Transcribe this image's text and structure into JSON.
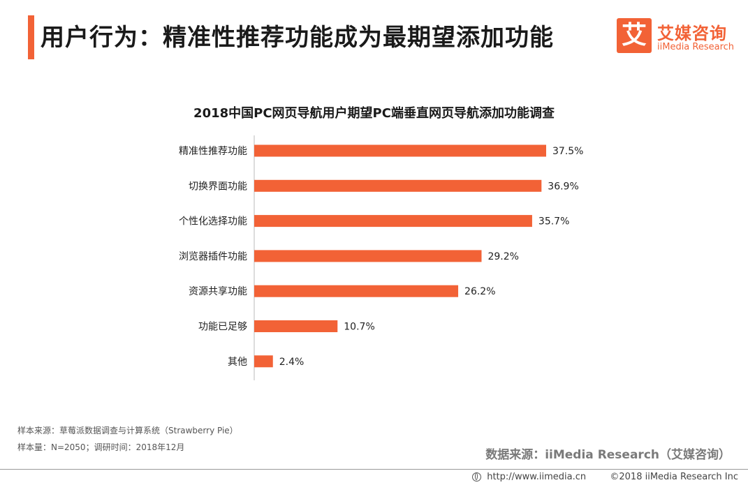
{
  "header": {
    "title": "用户行为：精准性推荐功能成为最期望添加功能",
    "logo_mark": "艾",
    "logo_cn": "艾媒咨询",
    "logo_en": "iiMedia Research"
  },
  "chart_data": {
    "type": "bar",
    "orientation": "horizontal",
    "title": "2018中国PC网页导航用户期望PC端垂直网页导航添加功能调查",
    "categories": [
      "精准性推荐功能",
      "切换界面功能",
      "个性化选择功能",
      "浏览器插件功能",
      "资源共享功能",
      "功能已足够",
      "其他"
    ],
    "values": [
      37.5,
      36.9,
      35.7,
      29.2,
      26.2,
      10.7,
      2.4
    ],
    "value_labels": [
      "37.5%",
      "36.9%",
      "35.7%",
      "29.2%",
      "26.2%",
      "10.7%",
      "2.4%"
    ],
    "xlim": [
      0,
      37.5
    ],
    "bar_color": "#f26236",
    "grid": false,
    "legend": "none"
  },
  "notes": {
    "sample_source": "样本来源：草莓派数据调查与计算系统（Strawberry Pie）",
    "sample_size": "样本量：N=2050；调研时间：2018年12月",
    "data_source": "数据来源：iiMedia Research（艾媒咨询）"
  },
  "footer": {
    "url": "http://www.iimedia.cn",
    "copyright": "©2018  iiMedia Research  Inc"
  },
  "colors": {
    "accent": "#f26236",
    "axis": "#bbbbbb"
  }
}
